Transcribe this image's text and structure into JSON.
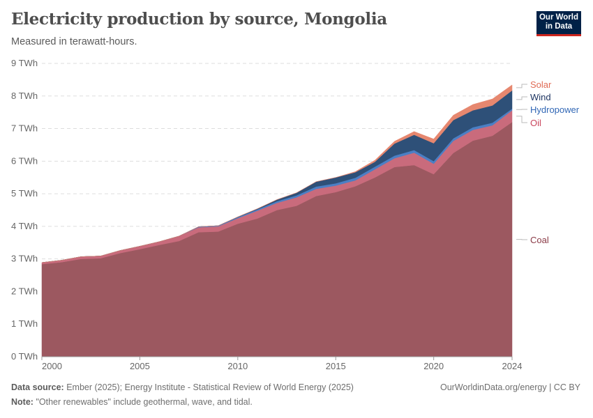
{
  "header": {
    "title": "Electricity production by source, Mongolia",
    "subtitle": "Measured in terawatt-hours.",
    "logo": "Our World in Data"
  },
  "footer": {
    "source_label": "Data source:",
    "source": "Ember (2025); Energy Institute - Statistical Review of World Energy (2025)",
    "note_label": "Note:",
    "note": "\"Other renewables\" include geothermal, wave, and tidal.",
    "credit": "OurWorldinData.org/energy | CC BY"
  },
  "chart_data": {
    "type": "area",
    "stacked": true,
    "title": "Electricity production by source, Mongolia",
    "subtitle": "Measured in terawatt-hours.",
    "xlim": [
      2000,
      2024
    ],
    "ylim": [
      0,
      9
    ],
    "grid": "horizontal dashed",
    "legend": "right (inline labels)",
    "x_ticks": [
      "2000",
      "2005",
      "2010",
      "2015",
      "2020",
      "2024"
    ],
    "y_ticks": [
      "0 TWh",
      "1 TWh",
      "2 TWh",
      "3 TWh",
      "4 TWh",
      "5 TWh",
      "6 TWh",
      "7 TWh",
      "8 TWh",
      "9 TWh"
    ],
    "x": [
      2000,
      2001,
      2002,
      2003,
      2004,
      2005,
      2006,
      2007,
      2008,
      2009,
      2010,
      2011,
      2012,
      2013,
      2014,
      2015,
      2016,
      2017,
      2018,
      2019,
      2020,
      2021,
      2022,
      2023,
      2024
    ],
    "series": [
      {
        "name": "Coal",
        "color": "#9c5860",
        "values": [
          2.84,
          2.9,
          3.0,
          3.02,
          3.18,
          3.3,
          3.43,
          3.55,
          3.82,
          3.84,
          4.08,
          4.24,
          4.5,
          4.63,
          4.93,
          5.05,
          5.23,
          5.5,
          5.82,
          5.88,
          5.6,
          6.25,
          6.63,
          6.78,
          7.2
        ]
      },
      {
        "name": "Oil",
        "color": "#c96b7c",
        "values": [
          0.05,
          0.06,
          0.07,
          0.07,
          0.08,
          0.09,
          0.1,
          0.15,
          0.15,
          0.16,
          0.17,
          0.24,
          0.22,
          0.26,
          0.22,
          0.2,
          0.18,
          0.25,
          0.27,
          0.38,
          0.32,
          0.37,
          0.33,
          0.32,
          0.36
        ]
      },
      {
        "name": "Hydropower",
        "color": "#4b7fc4",
        "values": [
          0,
          0,
          0,
          0,
          0,
          0,
          0,
          0,
          0.02,
          0.02,
          0.03,
          0.04,
          0.05,
          0.06,
          0.07,
          0.07,
          0.08,
          0.08,
          0.08,
          0.08,
          0.08,
          0.08,
          0.08,
          0.08,
          0.05
        ]
      },
      {
        "name": "Wind",
        "color": "#2e5078",
        "values": [
          0,
          0,
          0,
          0,
          0,
          0,
          0,
          0,
          0,
          0,
          0.01,
          0.02,
          0.05,
          0.08,
          0.15,
          0.18,
          0.17,
          0.15,
          0.37,
          0.47,
          0.55,
          0.56,
          0.52,
          0.53,
          0.56
        ]
      },
      {
        "name": "Solar",
        "color": "#e6876f",
        "values": [
          0,
          0,
          0,
          0,
          0,
          0,
          0,
          0,
          0,
          0,
          0,
          0,
          0,
          0,
          0,
          0,
          0.02,
          0.05,
          0.07,
          0.1,
          0.13,
          0.15,
          0.18,
          0.2,
          0.17
        ]
      }
    ]
  }
}
